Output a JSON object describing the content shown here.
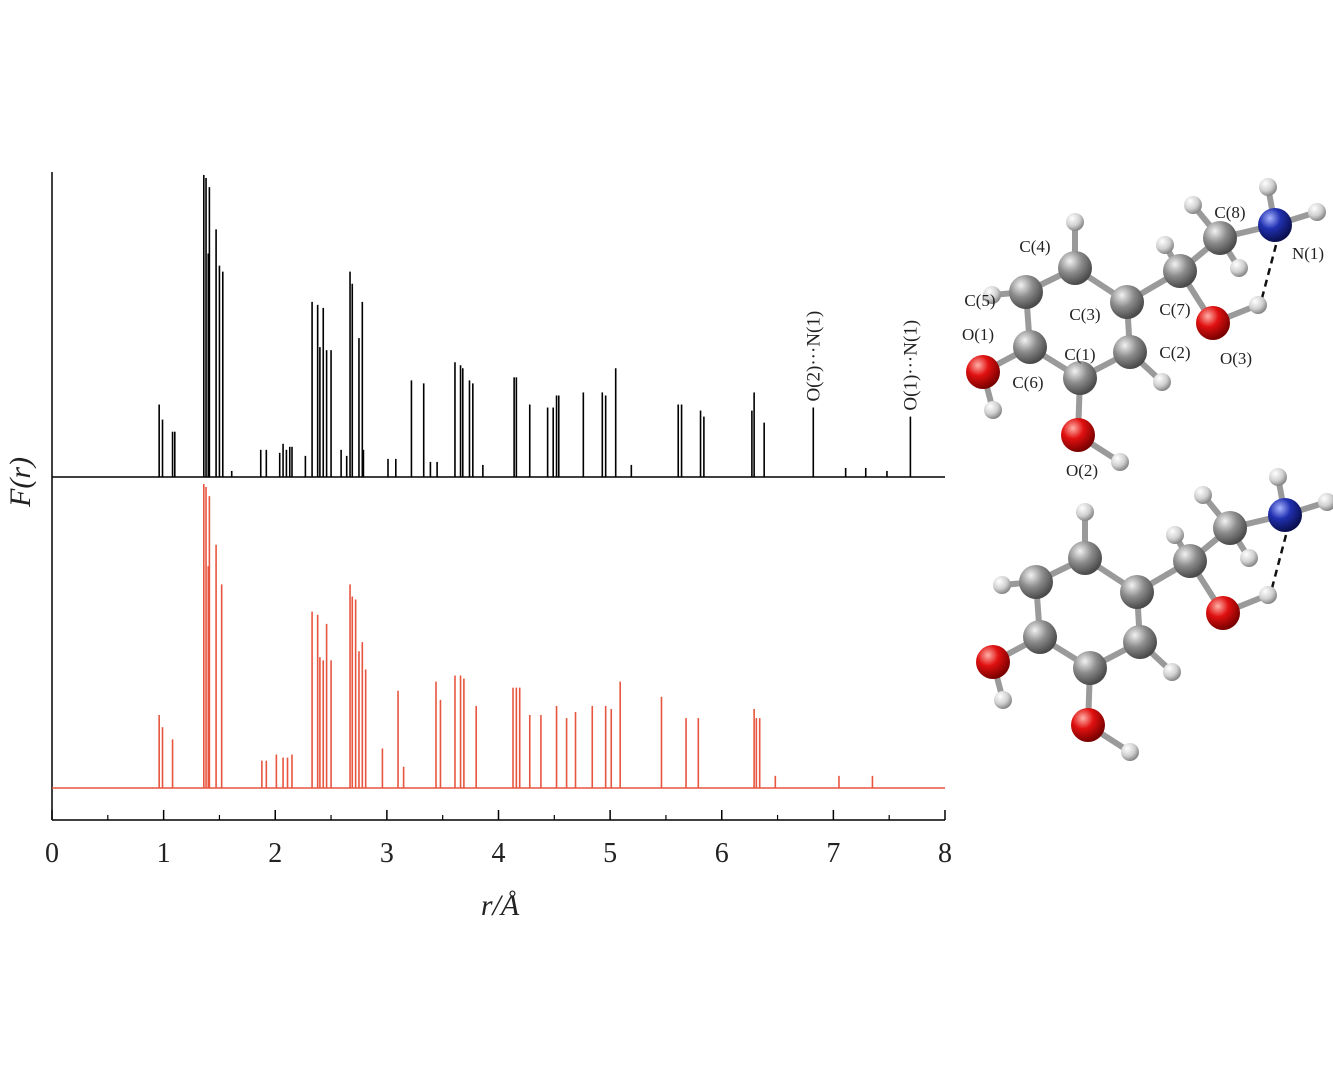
{
  "chart_data": {
    "type": "stick",
    "xlabel": "r/Å",
    "ylabel": "F(r)",
    "xlim": [
      0,
      8
    ],
    "xticks": [
      0,
      1,
      2,
      3,
      4,
      5,
      6,
      7,
      8
    ],
    "panels": [
      {
        "color": "#000000",
        "ylim": [
          0,
          100
        ],
        "x": [
          0.96,
          0.99,
          1.08,
          1.1,
          1.36,
          1.38,
          1.4,
          1.41,
          1.47,
          1.5,
          1.53,
          1.61,
          1.87,
          1.92,
          2.04,
          2.07,
          2.1,
          2.13,
          2.15,
          2.27,
          2.33,
          2.38,
          2.4,
          2.43,
          2.46,
          2.5,
          2.59,
          2.64,
          2.67,
          2.69,
          2.75,
          2.78,
          2.79,
          3.01,
          3.08,
          3.22,
          3.33,
          3.39,
          3.45,
          3.61,
          3.66,
          3.68,
          3.74,
          3.77,
          3.86,
          4.14,
          4.16,
          4.28,
          4.44,
          4.49,
          4.52,
          4.54,
          4.76,
          4.93,
          4.96,
          5.05,
          5.19,
          5.61,
          5.64,
          5.81,
          5.84,
          6.27,
          6.29,
          6.38,
          6.82,
          7.11,
          7.29,
          7.48,
          7.69
        ],
        "values": [
          24,
          19,
          15,
          15,
          100,
          99,
          74,
          96,
          82,
          70,
          68,
          2,
          9,
          9,
          8,
          11,
          9,
          10,
          10,
          7,
          58,
          57,
          43,
          56,
          42,
          42,
          9,
          7,
          68,
          64,
          46,
          58,
          9,
          6,
          6,
          32,
          31,
          5,
          5,
          38,
          37,
          36,
          32,
          31,
          4,
          33,
          33,
          24,
          23,
          23,
          27,
          27,
          28,
          28,
          27,
          36,
          4,
          24,
          24,
          22,
          20,
          22,
          28,
          18,
          23,
          3,
          3,
          2,
          20
        ]
      },
      {
        "color": "#e8553f",
        "ylim": [
          0,
          100
        ],
        "x": [
          0.96,
          0.99,
          1.08,
          1.36,
          1.38,
          1.4,
          1.41,
          1.47,
          1.52,
          1.88,
          1.92,
          2.01,
          2.07,
          2.11,
          2.15,
          2.33,
          2.38,
          2.4,
          2.43,
          2.46,
          2.5,
          2.67,
          2.69,
          2.72,
          2.75,
          2.78,
          2.81,
          2.96,
          3.1,
          3.15,
          3.44,
          3.48,
          3.61,
          3.66,
          3.69,
          3.8,
          4.13,
          4.16,
          4.19,
          4.28,
          4.38,
          4.52,
          4.61,
          4.69,
          4.84,
          4.96,
          5.01,
          5.09,
          5.46,
          5.68,
          5.79,
          6.29,
          6.31,
          6.34,
          6.48,
          7.05,
          7.35
        ],
        "values": [
          24,
          20,
          16,
          100,
          99,
          73,
          96,
          80,
          67,
          9,
          9,
          11,
          10,
          10,
          11,
          58,
          57,
          43,
          42,
          54,
          42,
          67,
          63,
          62,
          45,
          48,
          39,
          13,
          32,
          7,
          35,
          29,
          37,
          37,
          36,
          27,
          33,
          33,
          33,
          24,
          24,
          27,
          23,
          25,
          27,
          27,
          26,
          35,
          30,
          23,
          23,
          26,
          23,
          23,
          4,
          4,
          4
        ]
      }
    ],
    "annotations": [
      {
        "text": "O(2)···N(1)",
        "x": 6.82
      },
      {
        "text": "O(1)···N(1)",
        "x": 7.69
      }
    ]
  },
  "molecule": {
    "labels": [
      "C(1)",
      "C(2)",
      "C(3)",
      "C(4)",
      "C(5)",
      "C(6)",
      "C(7)",
      "C(8)",
      "N(1)",
      "O(1)",
      "O(2)",
      "O(3)"
    ]
  }
}
